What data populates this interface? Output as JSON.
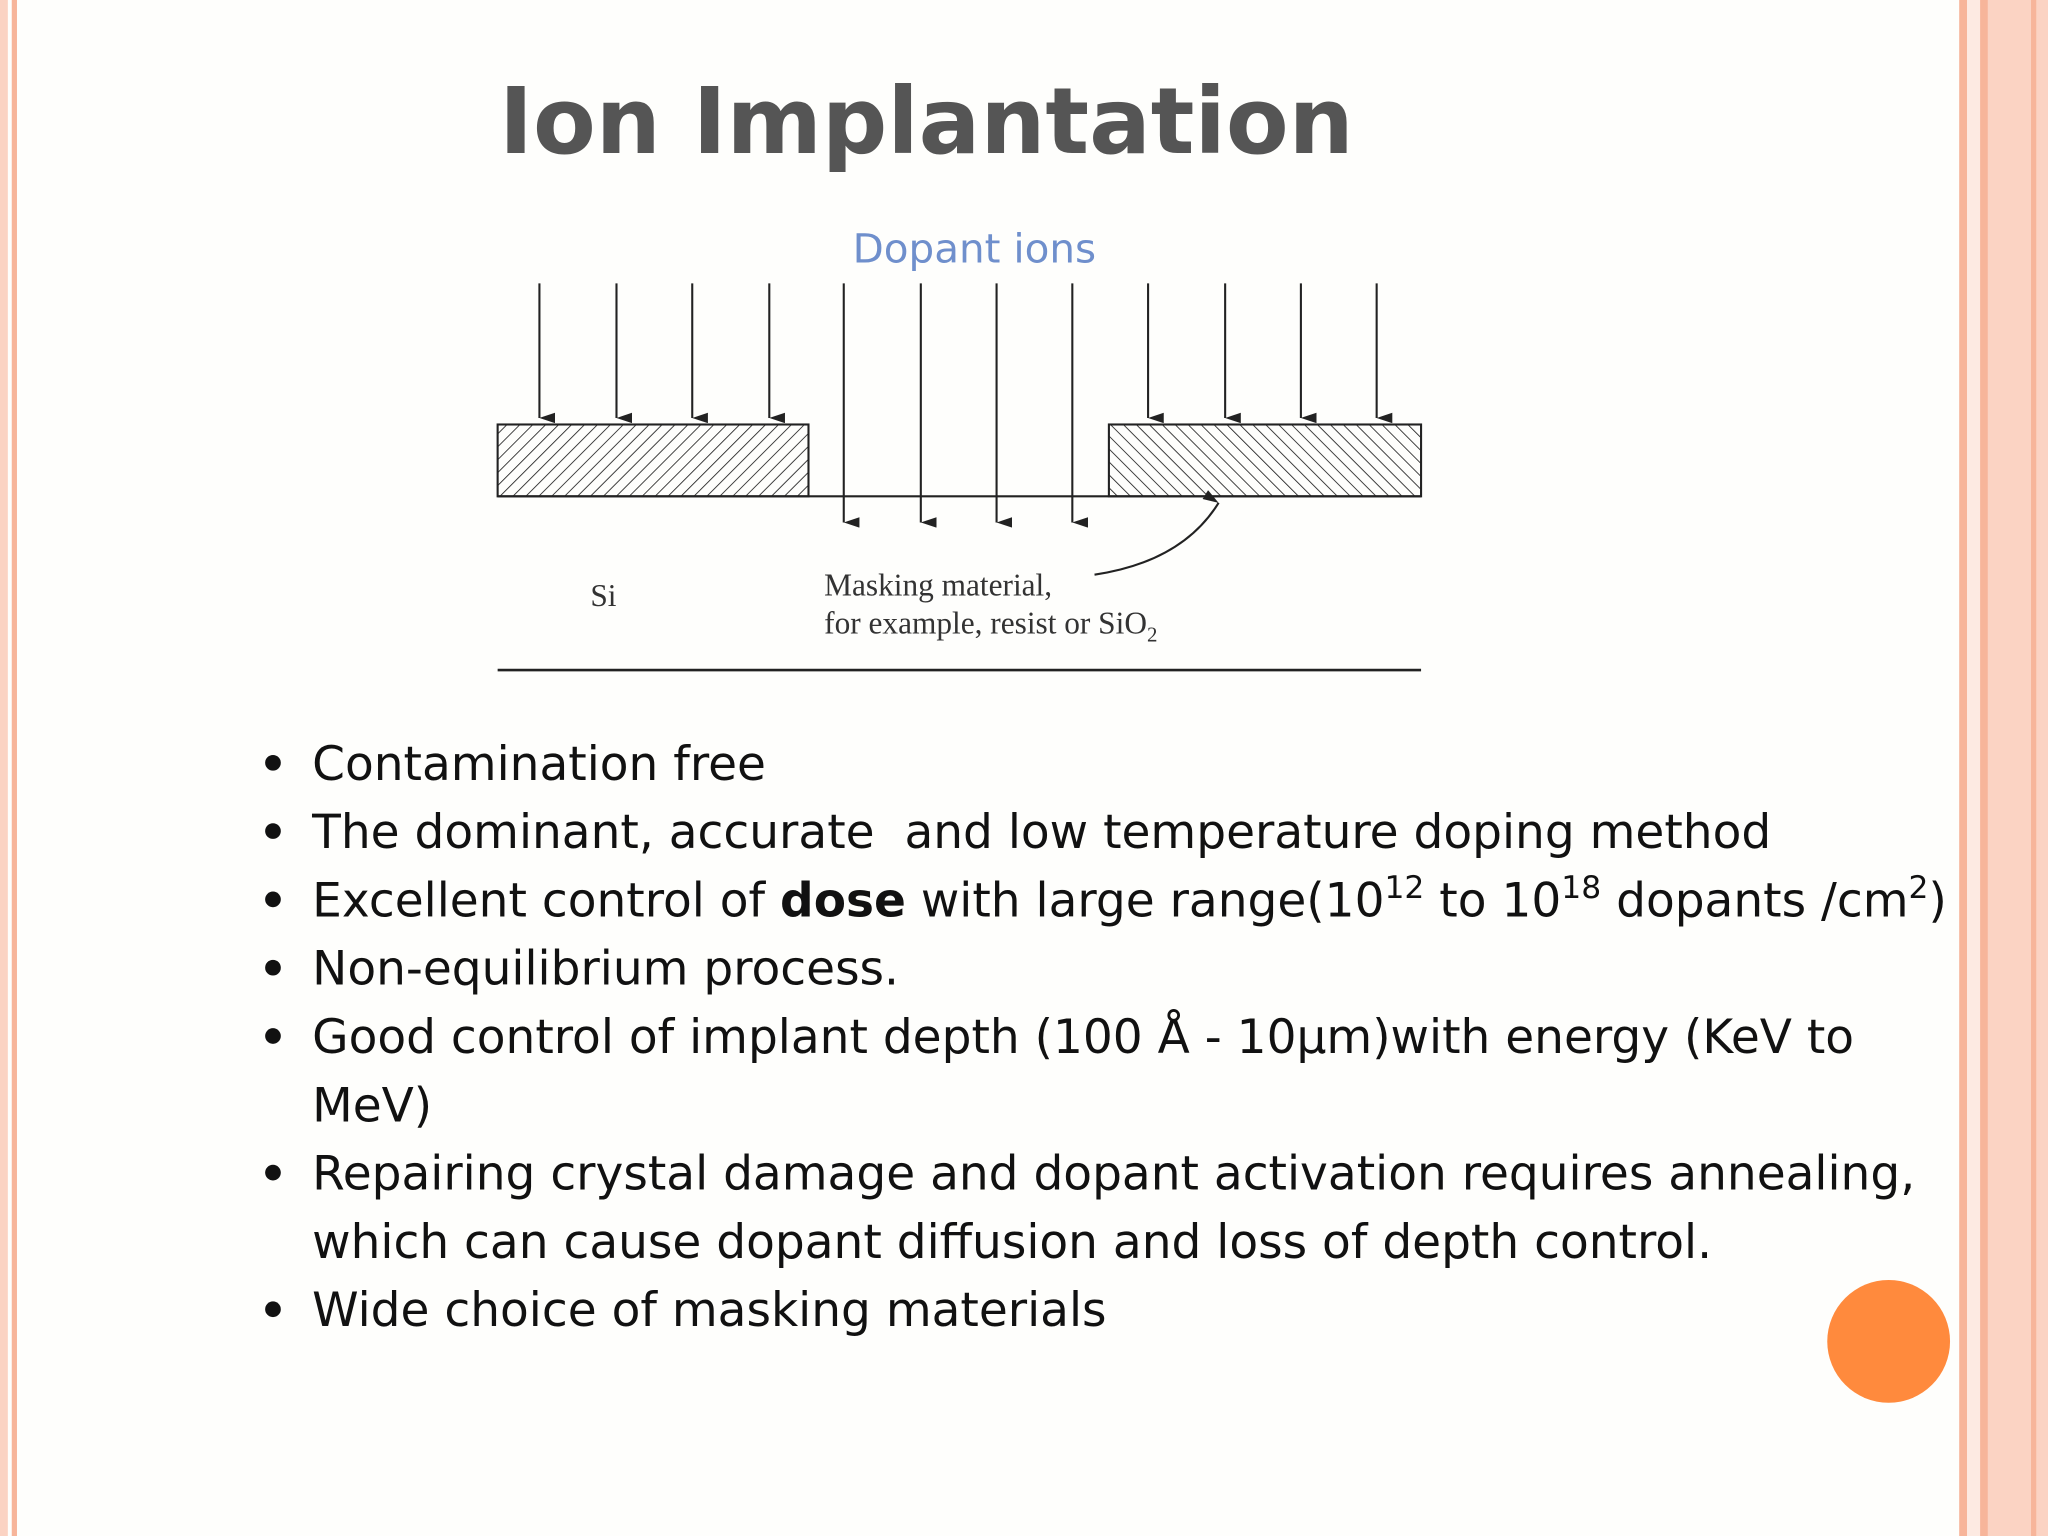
{
  "title": "Ion Implantation",
  "diagram": {
    "ions_label": "Dopant ions",
    "substrate_label": "Si",
    "mask_label_line1": "Masking material,",
    "mask_label_line2": "for example, resist or SiO",
    "mask_label_subscript": "2"
  },
  "bullets": [
    {
      "lines": [
        [
          {
            "text": "Contamination free"
          }
        ]
      ]
    },
    {
      "lines": [
        [
          {
            "text": "The dominant, accurate  and low temperature doping method"
          }
        ]
      ]
    },
    {
      "lines": [
        [
          {
            "text": "Excellent control of "
          },
          {
            "text": "dose",
            "style": "bold"
          },
          {
            "text": " with large range(10"
          },
          {
            "text": "12",
            "style": "sup"
          },
          {
            "text": " to 10"
          },
          {
            "text": "18",
            "style": "sup"
          },
          {
            "text": " dopants /cm"
          },
          {
            "text": "2",
            "style": "sup"
          },
          {
            "text": ")"
          }
        ]
      ]
    },
    {
      "lines": [
        [
          {
            "text": "Non-equilibrium process."
          }
        ]
      ]
    },
    {
      "lines": [
        [
          {
            "text": "Good control of implant depth (100 Å - 10µm)with energy (KeV to"
          }
        ],
        [
          {
            "text": "MeV)"
          }
        ]
      ]
    },
    {
      "lines": [
        [
          {
            "text": "Repairing crystal damage and dopant activation requires annealing,"
          }
        ],
        [
          {
            "text": "which can cause dopant diffusion and loss of depth control."
          }
        ]
      ]
    },
    {
      "lines": [
        [
          {
            "text": "Wide choice of masking materials"
          }
        ]
      ]
    }
  ]
}
